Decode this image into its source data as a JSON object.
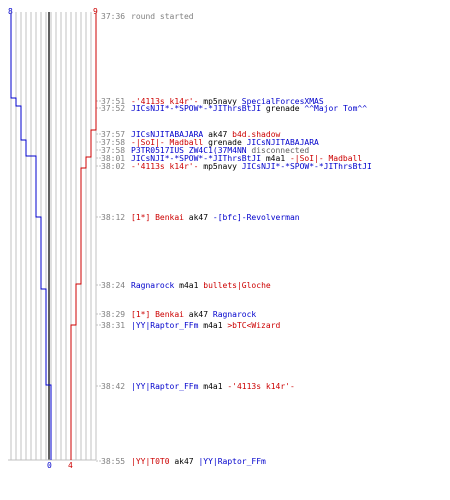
{
  "colors": {
    "blue": "#0000cc",
    "red": "#cc0000",
    "grid": "#c0c0c0",
    "axis": "#606060",
    "time": "#808080"
  },
  "scores": {
    "blue_start": "8",
    "red_start": "9",
    "blue_end": "0",
    "red_end": "4"
  },
  "events": [
    {
      "time": "37:36",
      "parts": [
        {
          "text": "round started",
          "color": "event"
        }
      ]
    },
    {
      "time": "37:51",
      "parts": [
        {
          "text": "-'4113s k14r'-",
          "color": "red"
        },
        {
          "text": " mp5navy ",
          "color": "dark"
        },
        {
          "text": "SpecialForcesXMAS",
          "color": "blue"
        }
      ]
    },
    {
      "time": "37:52",
      "parts": [
        {
          "text": "JICsNJI*-*SPOW*-*JIThrsBtJI",
          "color": "blue"
        },
        {
          "text": " grenade ",
          "color": "dark"
        },
        {
          "text": "^^Major Tom^^",
          "color": "blue"
        }
      ]
    },
    {
      "time": "37:57",
      "parts": [
        {
          "text": "JICsNJITABAJARA",
          "color": "blue"
        },
        {
          "text": " ak47 ",
          "color": "dark"
        },
        {
          "text": "b4d.shadow",
          "color": "red"
        }
      ]
    },
    {
      "time": "37:58",
      "parts": [
        {
          "text": "-|SoI|- Madball",
          "color": "red"
        },
        {
          "text": " grenade ",
          "color": "dark"
        },
        {
          "text": "JICsNJITABAJARA",
          "color": "blue"
        }
      ]
    },
    {
      "time": "37:58",
      "parts": [
        {
          "text": "P3TR0517IUS ZW4C1(37M4NN",
          "color": "blue"
        },
        {
          "text": " disconnected",
          "color": "gray"
        }
      ]
    },
    {
      "time": "38:01",
      "parts": [
        {
          "text": "JICsNJI*-*SPOW*-*JIThrsBtJI",
          "color": "blue"
        },
        {
          "text": " m4a1 ",
          "color": "dark"
        },
        {
          "text": "-|SoI|- Madball",
          "color": "red"
        }
      ]
    },
    {
      "time": "38:02",
      "parts": [
        {
          "text": "-'4113s k14r'-",
          "color": "red"
        },
        {
          "text": " mp5navy ",
          "color": "dark"
        },
        {
          "text": "JICsNJI*-*SPOW*-*JIThrsBtJI",
          "color": "blue"
        }
      ]
    },
    {
      "time": "38:12",
      "parts": [
        {
          "text": "[1*] Benkai",
          "color": "red"
        },
        {
          "text": " ak47 ",
          "color": "dark"
        },
        {
          "text": "-[bfc]-Revolverman",
          "color": "blue"
        }
      ]
    },
    {
      "time": "38:24",
      "parts": [
        {
          "text": "Ragnarock",
          "color": "blue"
        },
        {
          "text": " m4a1 ",
          "color": "dark"
        },
        {
          "text": "bullets|Gloche",
          "color": "red"
        }
      ]
    },
    {
      "time": "38:29",
      "parts": [
        {
          "text": "[1*] Benkai",
          "color": "red"
        },
        {
          "text": " ak47 ",
          "color": "dark"
        },
        {
          "text": "Ragnarock",
          "color": "blue"
        }
      ]
    },
    {
      "time": "38:31",
      "parts": [
        {
          "text": "|YY|Raptor_FFm",
          "color": "blue"
        },
        {
          "text": " m4a1 ",
          "color": "dark"
        },
        {
          "text": ">bTC<Wizard",
          "color": "red"
        }
      ]
    },
    {
      "time": "38:42",
      "parts": [
        {
          "text": "|YY|Raptor_FFm",
          "color": "blue"
        },
        {
          "text": " m4a1 ",
          "color": "dark"
        },
        {
          "text": "-'4113s k14r'-",
          "color": "red"
        }
      ]
    },
    {
      "time": "38:55",
      "parts": [
        {
          "text": "|YY|T0T0",
          "color": "red"
        },
        {
          "text": " ak47 ",
          "color": "dark"
        },
        {
          "text": "|YY|Raptor_FFm",
          "color": "blue"
        }
      ]
    }
  ]
}
